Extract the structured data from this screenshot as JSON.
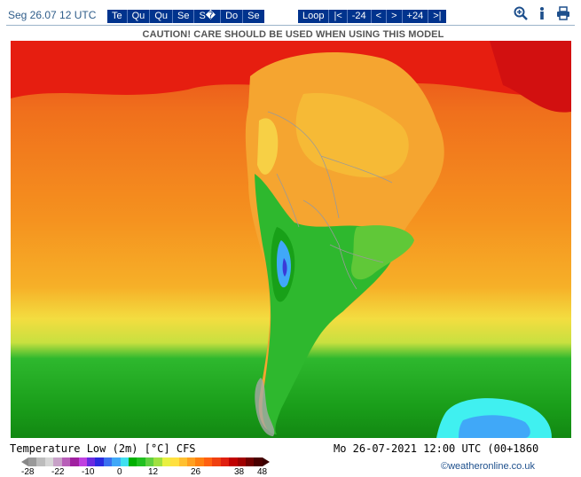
{
  "header": {
    "date": "Seg 26.07 12 UTC",
    "days": [
      "Te",
      "Qu",
      "Qu",
      "Se",
      "S�",
      "Do",
      "Se"
    ],
    "nav": [
      "Loop",
      "|<",
      "-24",
      "<",
      ">",
      "+24",
      ">|"
    ],
    "tools": [
      "zoom-icon",
      "info-icon",
      "print-icon"
    ]
  },
  "caution": "CAUTION! CARE SHOULD BE USED WHEN USING THIS MODEL",
  "footer": {
    "title": "Temperature Low (2m) [°C] CFS",
    "valid": "Mo 26-07-2021 12:00 UTC (00+1860",
    "copyright": "©weatheronline.co.uk"
  },
  "legend": {
    "colors": [
      "#9a9a9a",
      "#bcbcbc",
      "#d6d6d6",
      "#c8a2c8",
      "#b85fb8",
      "#a020a0",
      "#c040e0",
      "#6a2ae0",
      "#2a2ae0",
      "#3a70f0",
      "#40a8f8",
      "#40e0f0",
      "#00b000",
      "#20c020",
      "#60d040",
      "#a0e040",
      "#e8f040",
      "#ffe040",
      "#ffc030",
      "#ffa020",
      "#ff8010",
      "#ff6010",
      "#f04010",
      "#e02010",
      "#c00000",
      "#a00000",
      "#700000",
      "#4a0000"
    ],
    "tick_labels": [
      "-28",
      "-22",
      "-10",
      "0",
      "12",
      "26",
      "38",
      "48"
    ]
  },
  "map": {
    "palette": {
      "ocean_warm": "#f07a1c",
      "ocean_hot": "#e83c10",
      "tropical_red": "#e61e10",
      "land_orange": "#f5a530",
      "land_yellow": "#f7d045",
      "green_dark": "#18a018",
      "green_mid": "#2eb82e",
      "green_light": "#8ad040",
      "ice_cyan": "#40f0f0",
      "ice_blue": "#40a8f8",
      "grey_island": "#a8a8a8"
    }
  }
}
